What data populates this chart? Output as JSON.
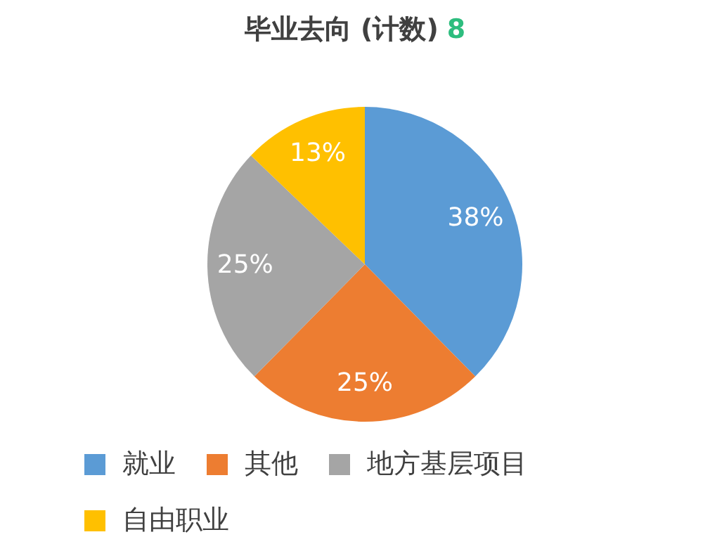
{
  "chart_data": {
    "type": "pie",
    "title": "毕业去向 (计数)",
    "subtitle": "8",
    "categories": [
      "就业",
      "其他",
      "地方基层项目",
      "自由职业"
    ],
    "values": [
      38,
      25,
      25,
      13
    ],
    "value_labels": [
      "38%",
      "25%",
      "25%",
      "13%"
    ],
    "colors": [
      "#5b9bd5",
      "#ed7d31",
      "#a5a5a5",
      "#ffc000"
    ],
    "legend": "bottom"
  }
}
